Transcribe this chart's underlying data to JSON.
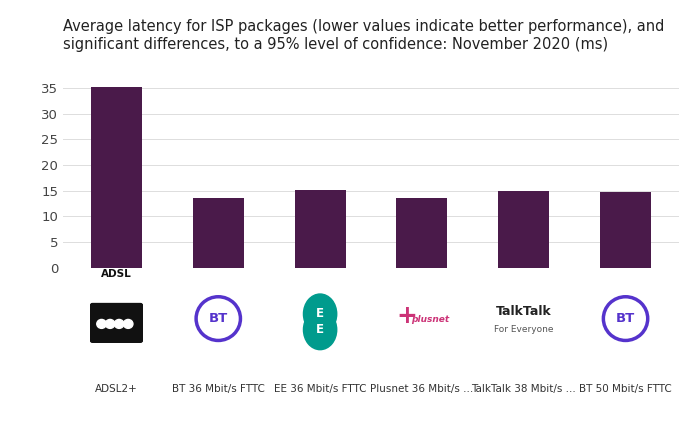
{
  "title": "Average latency for ISP packages (lower values indicate better performance), and\nsignificant differences, to a 95% level of confidence: November 2020 (ms)",
  "categories": [
    "ADSL2+",
    "BT 36 Mbit/s FTTC",
    "EE 36 Mbit/s FTTC",
    "Plusnet 36 Mbit/s ...",
    "TalkTalk 38 Mbit/s ...",
    "BT 50 Mbit/s FTTC"
  ],
  "values": [
    35.2,
    13.5,
    15.2,
    13.5,
    15.0,
    14.8
  ],
  "bar_color": "#4a1a4a",
  "bar_width": 0.5,
  "ylim": [
    0,
    37
  ],
  "yticks": [
    0,
    5,
    10,
    15,
    20,
    25,
    30,
    35
  ],
  "title_fontsize": 10.5,
  "tick_fontsize": 9.5,
  "bg_color": "#ffffff",
  "isp_types": [
    "adsl",
    "bt",
    "ee",
    "plusnet",
    "talktalk",
    "bt"
  ],
  "bt_color": "#5533cc",
  "ee_color": "#009b8d",
  "plusnet_color": "#cc3377",
  "adsl_color": "#111111",
  "talktalk_bold_color": "#222222",
  "talktalk_sub_color": "#555555",
  "label_color": "#333333",
  "grid_color": "#dddddd"
}
